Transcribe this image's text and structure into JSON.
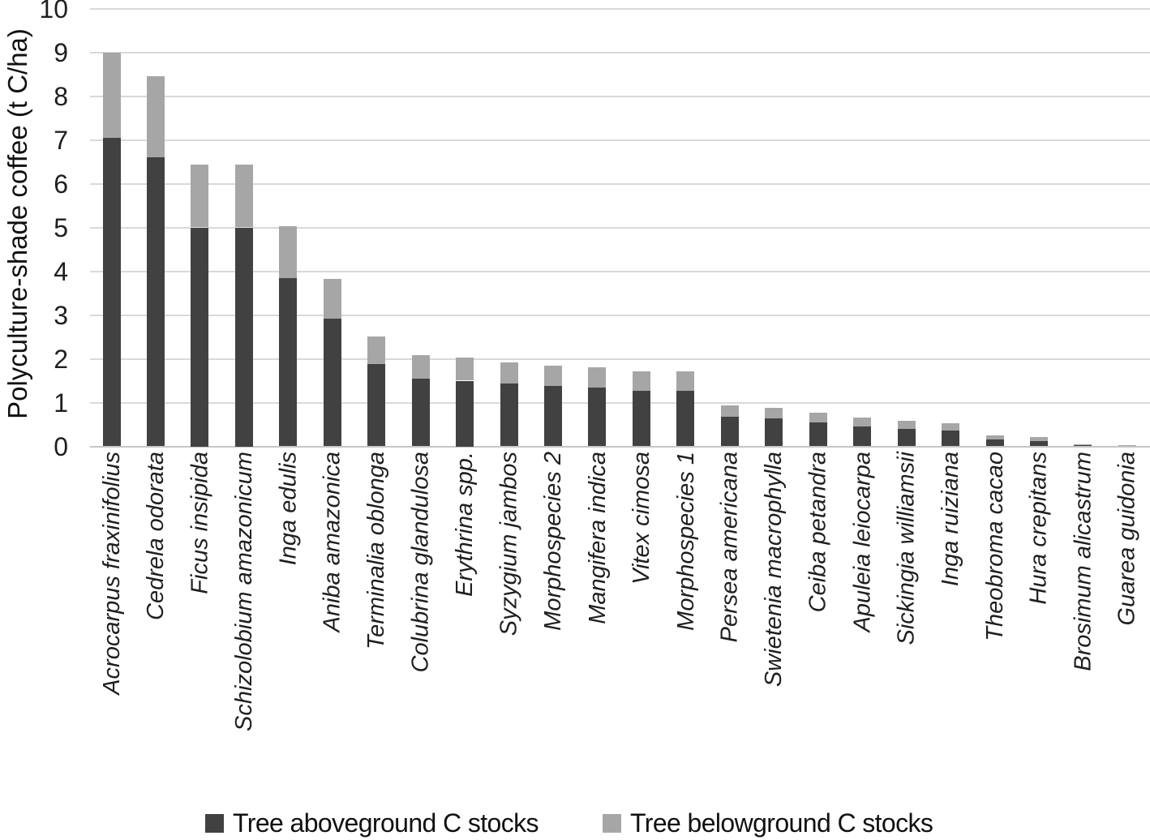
{
  "chart_data": {
    "type": "bar",
    "stacked": true,
    "title": "",
    "xlabel": "",
    "ylabel": "Polyculture-shade coffee (t C/ha)",
    "ylim": [
      0,
      10
    ],
    "y_ticks": [
      "0",
      "1",
      "2",
      "3",
      "4",
      "5",
      "6",
      "7",
      "8",
      "9",
      "10"
    ],
    "grid": true,
    "legend_position": "bottom",
    "categories": [
      "Acrocarpus fraxinifolius",
      "Cedrela odorata",
      "Ficus insipida",
      "Schizolobium amazonicum",
      "Inga edulis",
      "Aniba amazonica",
      "Terminalia oblonga",
      "Colubrina glandulosa",
      "Erythrina spp.",
      "Syzygium jambos",
      "Morphospecies 2",
      "Mangifera indica",
      "Vitex cimosa",
      "Morphospecies 1",
      "Persea americana",
      "Swietenia macrophylla",
      "Ceiba petandra",
      "Apuleia leiocarpa",
      "Sickingia williamsii",
      "Inga ruiziana",
      "Theobroma cacao",
      "Hura crepitans",
      "Brosimum alicastrum",
      "Guarea guidonia"
    ],
    "series": [
      {
        "name": "Tree aboveground C stocks",
        "color": "#414141",
        "values": [
          7.05,
          6.6,
          5.0,
          5.0,
          3.85,
          2.92,
          1.88,
          1.55,
          1.5,
          1.43,
          1.38,
          1.35,
          1.27,
          1.27,
          0.67,
          0.63,
          0.55,
          0.46,
          0.4,
          0.36,
          0.16,
          0.12,
          0.03,
          0.02
        ]
      },
      {
        "name": "Tree belowground C stocks",
        "color": "#a6a6a6",
        "values": [
          1.95,
          1.86,
          1.44,
          1.44,
          1.17,
          0.9,
          0.63,
          0.53,
          0.53,
          0.49,
          0.46,
          0.45,
          0.45,
          0.45,
          0.26,
          0.25,
          0.21,
          0.2,
          0.18,
          0.17,
          0.09,
          0.1,
          0.02,
          0.01
        ]
      }
    ],
    "gridline_color": "#d9d9d9",
    "axis_line_color": "#c6c6c6",
    "text_color": "#1f1f1f"
  }
}
